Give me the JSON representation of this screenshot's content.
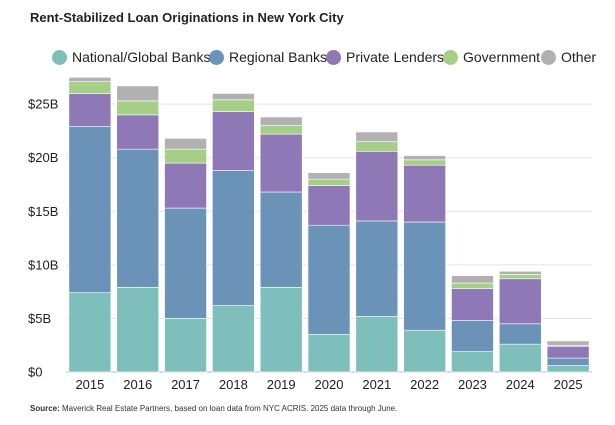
{
  "chart_data": {
    "type": "bar",
    "stacked": true,
    "title": "Rent-Stabilized Loan Originations in New York City",
    "xlabel": "",
    "ylabel": "",
    "categories": [
      "2015",
      "2016",
      "2017",
      "2018",
      "2019",
      "2020",
      "2021",
      "2022",
      "2023",
      "2024",
      "2025"
    ],
    "series": [
      {
        "name": "National/Global Banks",
        "color": "#7fbfbb",
        "values": [
          7.4,
          7.9,
          5.0,
          6.2,
          7.9,
          3.5,
          5.2,
          3.9,
          1.9,
          2.6,
          0.6
        ]
      },
      {
        "name": "Regional Banks",
        "color": "#6a93b7",
        "values": [
          15.5,
          12.9,
          10.3,
          12.6,
          8.9,
          10.2,
          8.9,
          10.1,
          2.9,
          1.9,
          0.7
        ]
      },
      {
        "name": "Private Lenders",
        "color": "#8e78b5",
        "values": [
          3.1,
          3.2,
          4.2,
          5.5,
          5.4,
          3.7,
          6.5,
          5.3,
          3.0,
          4.2,
          1.1
        ]
      },
      {
        "name": "Government",
        "color": "#a5cf86",
        "values": [
          1.1,
          1.3,
          1.3,
          1.1,
          0.8,
          0.6,
          0.9,
          0.5,
          0.5,
          0.4,
          0.1
        ]
      },
      {
        "name": "Other",
        "color": "#b1b1b1",
        "values": [
          0.4,
          1.4,
          1.0,
          0.6,
          0.8,
          0.6,
          0.9,
          0.4,
          0.7,
          0.3,
          0.4
        ]
      }
    ],
    "ylim": [
      0,
      28
    ],
    "yticks": [
      0,
      5,
      10,
      15,
      20,
      25
    ],
    "ytick_labels": [
      "$0",
      "$5B",
      "$10B",
      "$15B",
      "$20B",
      "$25B"
    ],
    "grid": true,
    "legend": "top",
    "source_label": "Source:",
    "source_text": " Maverick Real Estate Partners, based on loan data from NYC ACRIS. 2025 data through June."
  }
}
